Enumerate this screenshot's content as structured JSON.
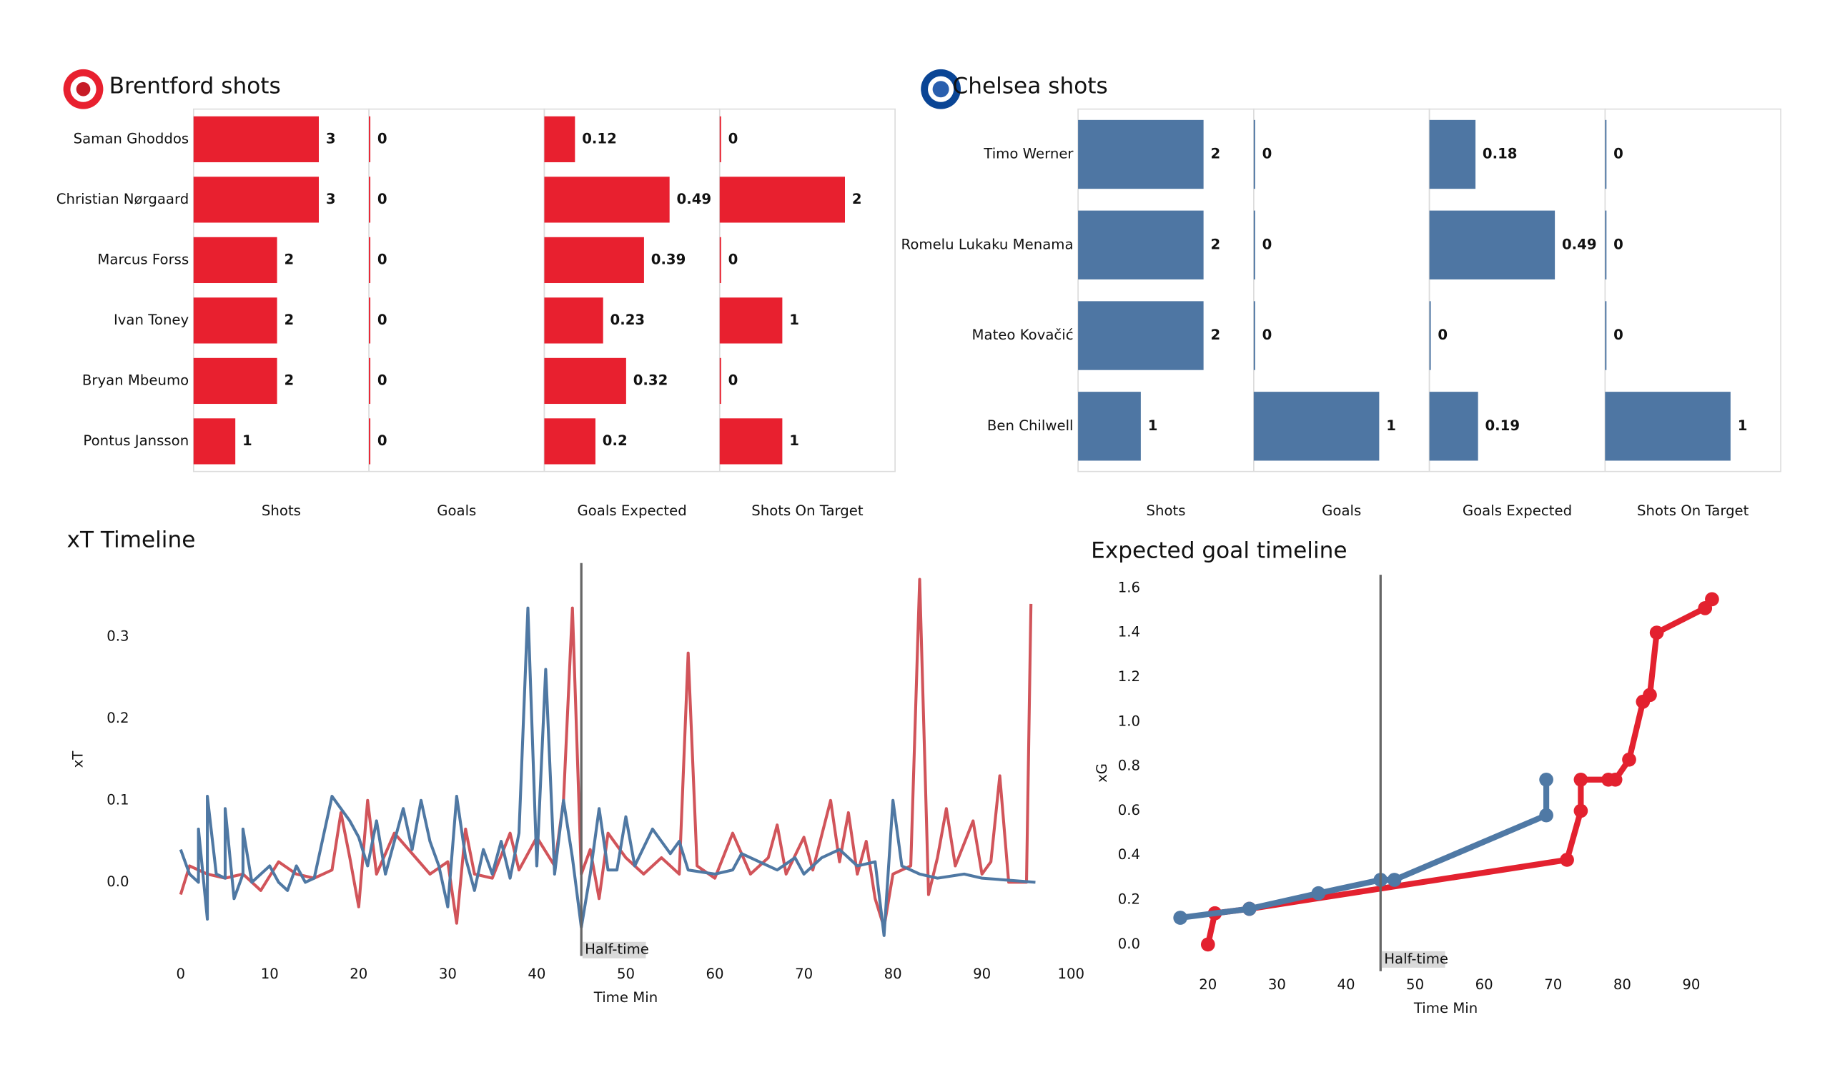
{
  "chart_data": [
    {
      "type": "bar",
      "orientation": "horizontal",
      "title": "Brentford shots",
      "color": "#e8202f",
      "categories": [
        "Saman Ghoddos",
        "Christian Nørgaard",
        "Marcus Forss",
        "Ivan Toney",
        "Bryan Mbeumo",
        "Pontus Jansson"
      ],
      "panels": [
        {
          "label": "Shots",
          "values": [
            3,
            3,
            2,
            2,
            2,
            1
          ]
        },
        {
          "label": "Goals",
          "values": [
            0,
            0,
            0,
            0,
            0,
            0
          ]
        },
        {
          "label": "Goals Expected",
          "values": [
            0.12,
            0.49,
            0.39,
            0.23,
            0.32,
            0.2
          ]
        },
        {
          "label": "Shots On Target",
          "values": [
            0,
            2,
            0,
            1,
            0,
            1
          ]
        }
      ]
    },
    {
      "type": "bar",
      "orientation": "horizontal",
      "title": "Chelsea shots",
      "color": "#4e76a3",
      "categories": [
        "Timo Werner",
        "Romelu Lukaku Menama",
        "Mateo Kovačić",
        "Ben Chilwell"
      ],
      "panels": [
        {
          "label": "Shots",
          "values": [
            2,
            2,
            2,
            1
          ]
        },
        {
          "label": "Goals",
          "values": [
            0,
            0,
            0,
            1
          ]
        },
        {
          "label": "Goals Expected",
          "values": [
            0.18,
            0.49,
            0,
            0.19
          ]
        },
        {
          "label": "Shots On Target",
          "values": [
            0,
            0,
            0,
            1
          ]
        }
      ]
    },
    {
      "type": "line",
      "title": "xT Timeline",
      "x_label": "Time Min",
      "y_label": "xT",
      "markers": false,
      "line_width": 2.5,
      "xlim": [
        0,
        100
      ],
      "ylim": [
        -0.09,
        0.39
      ],
      "xticks": [
        0,
        10,
        20,
        30,
        40,
        50,
        60,
        70,
        80,
        90,
        100
      ],
      "yticks": [
        {
          "value": 0,
          "label": "0.0"
        },
        0.1,
        0.2,
        0.3
      ],
      "annotations": [
        {
          "x": 45,
          "text": "Half-time"
        }
      ],
      "series": [
        {
          "color": "#d1545a",
          "x": [
            0,
            1,
            3,
            5,
            7,
            9,
            11,
            13,
            15,
            17,
            18,
            19,
            20,
            21,
            22,
            24,
            26,
            28,
            30,
            31,
            32,
            33,
            35,
            37,
            38,
            40,
            42,
            43,
            44,
            45,
            46,
            47,
            48,
            50,
            52,
            54,
            56,
            57,
            58,
            60,
            62,
            64,
            66,
            67,
            68,
            70,
            71,
            73,
            74,
            75,
            76,
            77,
            78,
            79,
            80,
            82,
            83,
            84,
            85,
            86,
            87,
            89,
            90,
            91,
            92,
            93,
            95,
            95.5
          ],
          "values": [
            -0.015,
            0.02,
            0.01,
            0.005,
            0.01,
            -0.01,
            0.025,
            0.01,
            0.005,
            0.015,
            0.085,
            0.03,
            -0.03,
            0.1,
            0.01,
            0.06,
            0.035,
            0.01,
            0.025,
            -0.05,
            0.065,
            0.01,
            0.005,
            0.06,
            0.015,
            0.055,
            0.02,
            0.1,
            0.335,
            0.01,
            0.04,
            -0.02,
            0.06,
            0.03,
            0.01,
            0.03,
            0.01,
            0.28,
            0.02,
            0.005,
            0.06,
            0.01,
            0.03,
            0.07,
            0.01,
            0.055,
            0.015,
            0.1,
            0.025,
            0.085,
            0.01,
            0.05,
            -0.02,
            -0.055,
            0.01,
            0.02,
            0.37,
            -0.015,
            0.03,
            0.09,
            0.02,
            0.075,
            0.01,
            0.025,
            0.13,
            0,
            0,
            0.34
          ]
        },
        {
          "color": "#4f78a3",
          "x": [
            0,
            1,
            2,
            2,
            3,
            3,
            4,
            5,
            5,
            6,
            7,
            7,
            8,
            9,
            10,
            11,
            12,
            13,
            14,
            15,
            17,
            18,
            19,
            20,
            21,
            22,
            23,
            25,
            26,
            27,
            28,
            29,
            30,
            31,
            32,
            33,
            34,
            35,
            36,
            37,
            38,
            39,
            40,
            41,
            42,
            43,
            44,
            45,
            46,
            47,
            48,
            49,
            50,
            51,
            53,
            55,
            56,
            57,
            60,
            62,
            63,
            65,
            67,
            69,
            70,
            72,
            74,
            76,
            78,
            79,
            80,
            81,
            83,
            85,
            88,
            90,
            96
          ],
          "values": [
            0.04,
            0.01,
            0,
            0.065,
            -0.045,
            0.105,
            0.01,
            0.005,
            0.09,
            -0.02,
            0.01,
            0.065,
            0,
            0.01,
            0.02,
            0,
            -0.01,
            0.02,
            0,
            0.005,
            0.105,
            0.09,
            0.075,
            0.055,
            0.02,
            0.075,
            0.01,
            0.09,
            0.04,
            0.1,
            0.05,
            0.02,
            -0.03,
            0.105,
            0.03,
            -0.01,
            0.04,
            0.01,
            0.05,
            0.005,
            0.06,
            0.335,
            0.02,
            0.26,
            0.01,
            0.1,
            0.03,
            -0.055,
            0.01,
            0.09,
            0.015,
            0.015,
            0.08,
            0.02,
            0.065,
            0.035,
            0.05,
            0.015,
            0.01,
            0.015,
            0.035,
            0.025,
            0.015,
            0.03,
            0.01,
            0.03,
            0.04,
            0.02,
            0.025,
            -0.065,
            0.1,
            0.02,
            0.01,
            0.005,
            0.01,
            0.005,
            0
          ]
        }
      ]
    },
    {
      "type": "line",
      "title": "Expected goal timeline",
      "x_label": "Time Min",
      "y_label": "xG",
      "markers": true,
      "line_width": 5,
      "xlim": [
        12.4,
        96.5
      ],
      "ylim": [
        -0.12,
        1.66
      ],
      "xticks": [
        20,
        30,
        40,
        50,
        60,
        70,
        80,
        90
      ],
      "yticks": [
        {
          "value": 0,
          "label": "0.0"
        },
        0.2,
        0.4,
        0.6,
        0.8,
        {
          "value": 1,
          "label": "1.0"
        },
        1.2,
        1.4,
        1.6
      ],
      "annotations": [
        {
          "x": 45,
          "text": "Half-time"
        }
      ],
      "series": [
        {
          "color": "#e3212f",
          "x": [
            20,
            21,
            26,
            72,
            74,
            74,
            78,
            79,
            81,
            83,
            84,
            85,
            92,
            93
          ],
          "values": [
            0,
            0.14,
            0.16,
            0.38,
            0.6,
            0.74,
            0.74,
            0.74,
            0.83,
            1.09,
            1.12,
            1.4,
            1.51,
            1.55
          ]
        },
        {
          "color": "#4f79a5",
          "x": [
            16,
            26,
            36,
            45,
            47,
            69,
            69
          ],
          "values": [
            0.12,
            0.16,
            0.23,
            0.29,
            0.29,
            0.58,
            0.74
          ]
        }
      ]
    }
  ]
}
